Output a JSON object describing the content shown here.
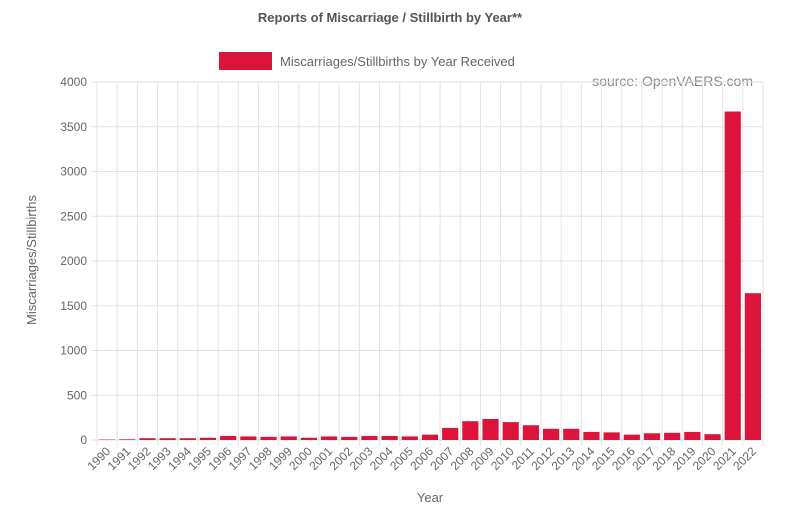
{
  "chart_data": {
    "type": "bar",
    "title": "Reports of Miscarriage / Stillbirth by Year**",
    "xlabel": "Year",
    "ylabel": "Miscarriages/Stillbirths",
    "annotation": "source: OpenVAERS.com",
    "ylim": [
      0,
      4000
    ],
    "yticks": [
      0,
      500,
      1000,
      1500,
      2000,
      2500,
      3000,
      3500,
      4000
    ],
    "grid": true,
    "legend_position": "top",
    "bar_color": "#dc143c",
    "categories": [
      "1990",
      "1991",
      "1992",
      "1993",
      "1994",
      "1995",
      "1996",
      "1997",
      "1998",
      "1999",
      "2000",
      "2001",
      "2002",
      "2003",
      "2004",
      "2005",
      "2006",
      "2007",
      "2008",
      "2009",
      "2010",
      "2011",
      "2012",
      "2013",
      "2014",
      "2015",
      "2016",
      "2017",
      "2018",
      "2019",
      "2020",
      "2021",
      "2022"
    ],
    "series": [
      {
        "name": "Miscarriages/Stillbirths by Year Received",
        "values": [
          5,
          8,
          20,
          20,
          20,
          25,
          45,
          40,
          35,
          40,
          25,
          40,
          35,
          45,
          45,
          40,
          60,
          135,
          210,
          235,
          200,
          165,
          125,
          125,
          90,
          85,
          60,
          75,
          80,
          90,
          65,
          3670,
          1640
        ]
      }
    ]
  }
}
